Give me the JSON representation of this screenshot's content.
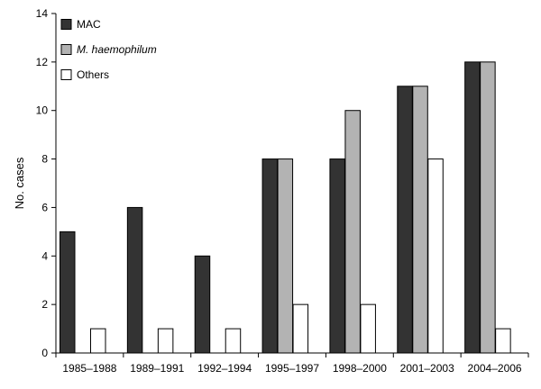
{
  "chart_data": {
    "type": "bar",
    "title": "",
    "xlabel": "",
    "ylabel": "No. cases",
    "ylim": [
      0,
      14
    ],
    "yticks": [
      0,
      2,
      4,
      6,
      8,
      10,
      12,
      14
    ],
    "grid": false,
    "legend_position": "top-left",
    "categories": [
      "1985–1988",
      "1989–1991",
      "1992–1994",
      "1995–1997",
      "1998–2000",
      "2001–2003",
      "2004–2006"
    ],
    "series": [
      {
        "name": "MAC",
        "italic": false,
        "color": "#333333",
        "values": [
          5,
          6,
          4,
          8,
          8,
          11,
          12
        ]
      },
      {
        "name": "M. haemophilum",
        "italic": true,
        "color": "#b3b3b3",
        "values": [
          0,
          0,
          0,
          8,
          10,
          11,
          12
        ]
      },
      {
        "name": "Others",
        "italic": false,
        "color": "#ffffff",
        "values": [
          1,
          1,
          1,
          2,
          2,
          8,
          1
        ]
      }
    ]
  }
}
